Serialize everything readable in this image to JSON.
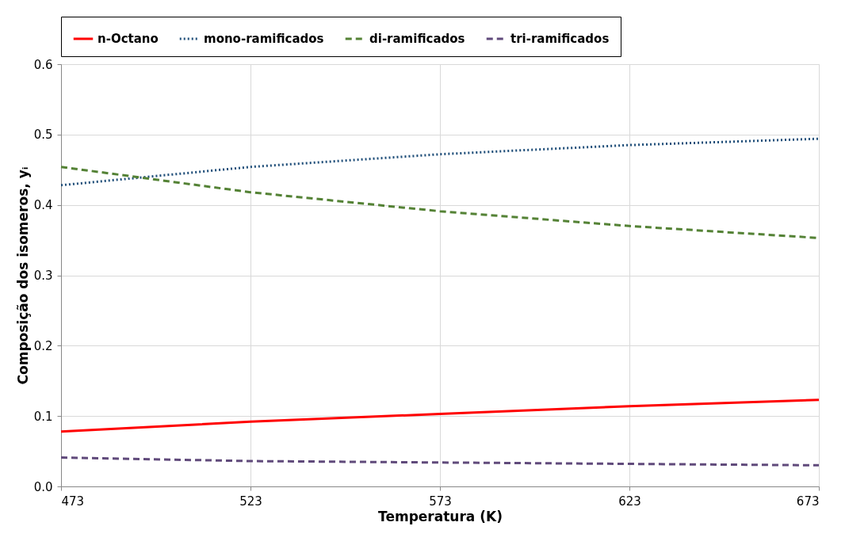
{
  "chart_data": {
    "type": "line",
    "xlabel": "Temperatura (K)",
    "ylabel": "Composição dos isomeros, yᵢ",
    "x": [
      473,
      523,
      573,
      623,
      673
    ],
    "series": [
      {
        "name": "n-Octano",
        "color": "#ff0000",
        "line_style": "solid",
        "values": [
          0.078,
          0.092,
          0.103,
          0.114,
          0.123
        ]
      },
      {
        "name": "mono-ramificados",
        "color": "#1f4e79",
        "line_style": "dotted",
        "values": [
          0.428,
          0.454,
          0.472,
          0.485,
          0.494
        ]
      },
      {
        "name": "di-ramificados",
        "color": "#548235",
        "line_style": "dashed",
        "values": [
          0.454,
          0.418,
          0.391,
          0.37,
          0.353
        ]
      },
      {
        "name": "tri-ramificados",
        "color": "#604a7b",
        "line_style": "dashed",
        "values": [
          0.041,
          0.036,
          0.034,
          0.032,
          0.03
        ]
      }
    ],
    "xlim": [
      473,
      673
    ],
    "xticks": [
      473,
      523,
      573,
      623,
      673
    ],
    "ylim": [
      0,
      0.6
    ],
    "yticks": [
      {
        "value": 0,
        "label": "0.0"
      },
      0.1,
      0.2,
      0.3,
      0.4,
      0.5,
      0.6
    ],
    "grid": true,
    "legend": "top",
    "marker": "none"
  }
}
